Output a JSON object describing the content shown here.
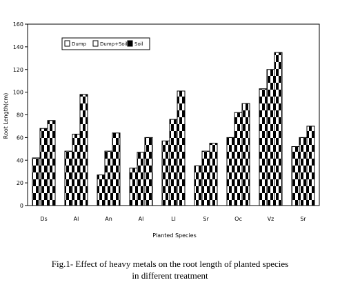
{
  "chart_data": {
    "type": "bar",
    "title": "",
    "xlabel": "Planted Species",
    "ylabel": "Root Length(cm)",
    "ylim": [
      0,
      160
    ],
    "yticks": [
      "0",
      "20",
      "40",
      "60",
      "80",
      "100",
      "120",
      "140",
      "160"
    ],
    "categories": [
      "Ds",
      "Al",
      "An",
      "Al",
      "Ll",
      "Sr",
      "Oc",
      "Vz",
      "Sr"
    ],
    "series": [
      {
        "name": "Dump",
        "values": [
          42,
          48,
          27,
          33,
          57,
          35,
          60,
          103,
          52
        ]
      },
      {
        "name": "Dump+Soil",
        "values": [
          68,
          63,
          48,
          47,
          76,
          48,
          82,
          120,
          60
        ]
      },
      {
        "name": "Soil",
        "values": [
          75,
          98,
          64,
          60,
          101,
          55,
          90,
          135,
          70
        ]
      }
    ],
    "grid": false,
    "legend_position": "top-left"
  },
  "caption": {
    "line1": "Fig.1- Effect of heavy metals on the root length of planted species",
    "line2": "in different treatment"
  }
}
